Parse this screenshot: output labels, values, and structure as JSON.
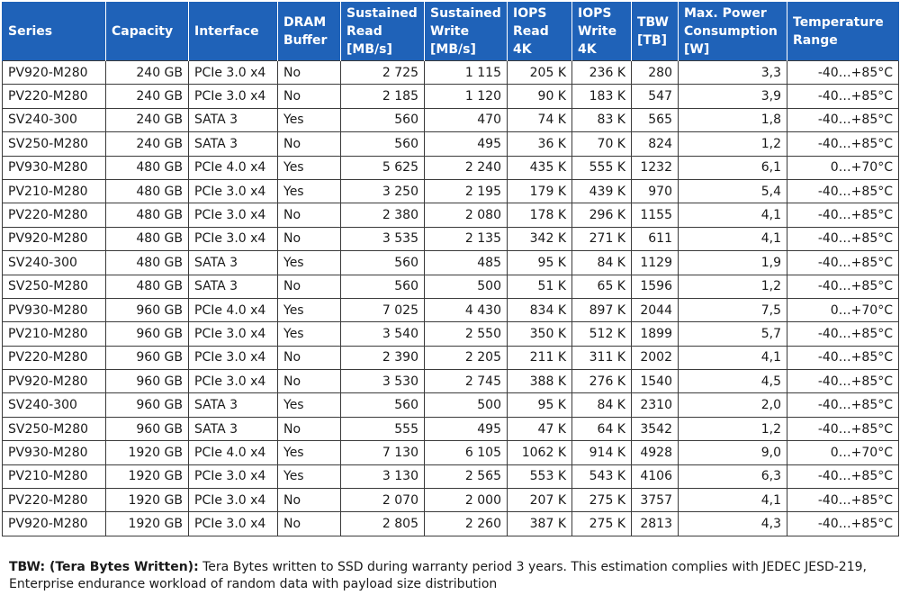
{
  "headers": [
    "Series",
    "Capacity",
    "Interface",
    "DRAM Buffer",
    "Sustained Read [MB/s]",
    "Sustained Write [MB/s]",
    "IOPS Read 4K",
    "IOPS Write 4K",
    "TBW [TB]",
    "Max. Power Consumption [W]",
    "Temperature Range"
  ],
  "rows": [
    [
      "PV920-M280",
      "240 GB",
      "PCIe 3.0 x4",
      "No",
      "2 725",
      "1 115",
      "205 K",
      "236 K",
      "280",
      "3,3",
      "-40…+85°C"
    ],
    [
      "PV220-M280",
      "240 GB",
      "PCIe 3.0 x4",
      "No",
      "2 185",
      "1 120",
      "90 K",
      "183 K",
      "547",
      "3,9",
      "-40…+85°C"
    ],
    [
      "SV240-300",
      "240 GB",
      "SATA 3",
      "Yes",
      "560",
      "470",
      "74 K",
      "83 K",
      "565",
      "1,8",
      "-40…+85°C"
    ],
    [
      "SV250-M280",
      "240 GB",
      "SATA 3",
      "No",
      "560",
      "495",
      "36 K",
      "70 K",
      "824",
      "1,2",
      "-40…+85°C"
    ],
    [
      "PV930-M280",
      "480 GB",
      "PCIe 4.0 x4",
      "Yes",
      "5 625",
      "2 240",
      "435 K",
      "555 K",
      "1232",
      "6,1",
      "0…+70°C"
    ],
    [
      "PV210-M280",
      "480 GB",
      "PCIe 3.0 x4",
      "Yes",
      "3 250",
      "2 195",
      "179 K",
      "439 K",
      "970",
      "5,4",
      "-40…+85°C"
    ],
    [
      "PV220-M280",
      "480 GB",
      "PCIe 3.0 x4",
      "No",
      "2 380",
      "2 080",
      "178 K",
      "296 K",
      "1155",
      "4,1",
      "-40…+85°C"
    ],
    [
      "PV920-M280",
      "480 GB",
      "PCIe 3.0 x4",
      "No",
      "3 535",
      "2 135",
      "342 K",
      "271 K",
      "611",
      "4,1",
      "-40…+85°C"
    ],
    [
      "SV240-300",
      "480 GB",
      "SATA 3",
      "Yes",
      "560",
      "485",
      "95 K",
      "84 K",
      "1129",
      "1,9",
      "-40…+85°C"
    ],
    [
      "SV250-M280",
      "480 GB",
      "SATA 3",
      "No",
      "560",
      "500",
      "51 K",
      "65 K",
      "1596",
      "1,2",
      "-40…+85°C"
    ],
    [
      "PV930-M280",
      "960 GB",
      "PCIe 4.0 x4",
      "Yes",
      "7 025",
      "4 430",
      "834 K",
      "897 K",
      "2044",
      "7,5",
      "0…+70°C"
    ],
    [
      "PV210-M280",
      "960 GB",
      "PCIe 3.0 x4",
      "Yes",
      "3 540",
      "2 550",
      "350 K",
      "512 K",
      "1899",
      "5,7",
      "-40…+85°C"
    ],
    [
      "PV220-M280",
      "960 GB",
      "PCIe 3.0 x4",
      "No",
      "2 390",
      "2 205",
      "211 K",
      "311 K",
      "2002",
      "4,1",
      "-40…+85°C"
    ],
    [
      "PV920-M280",
      "960 GB",
      "PCIe 3.0 x4",
      "No",
      "3 530",
      "2 745",
      "388 K",
      "276 K",
      "1540",
      "4,5",
      "-40…+85°C"
    ],
    [
      "SV240-300",
      "960 GB",
      "SATA 3",
      "Yes",
      "560",
      "500",
      "95 K",
      "84 K",
      "2310",
      "2,0",
      "-40…+85°C"
    ],
    [
      "SV250-M280",
      "960 GB",
      "SATA 3",
      "No",
      "555",
      "495",
      "47 K",
      "64 K",
      "3542",
      "1,2",
      "-40…+85°C"
    ],
    [
      "PV930-M280",
      "1920 GB",
      "PCIe 4.0 x4",
      "Yes",
      "7 130",
      "6 105",
      "1062 K",
      "914 K",
      "4928",
      "9,0",
      "0…+70°C"
    ],
    [
      "PV210-M280",
      "1920 GB",
      "PCIe 3.0 x4",
      "Yes",
      "3 130",
      "2 565",
      "553 K",
      "543 K",
      "4106",
      "6,3",
      "-40…+85°C"
    ],
    [
      "PV220-M280",
      "1920 GB",
      "PCIe 3.0 x4",
      "No",
      "2 070",
      "2 000",
      "207 K",
      "275 K",
      "3757",
      "4,1",
      "-40…+85°C"
    ],
    [
      "PV920-M280",
      "1920 GB",
      "PCIe 3.0 x4",
      "No",
      "2 805",
      "2 260",
      "387 K",
      "275 K",
      "2813",
      "4,3",
      "-40…+85°C"
    ]
  ],
  "footnote": {
    "term": "TBW: (Tera Bytes Written):",
    "text": " Tera Bytes written to SSD during warranty period 3 years. This estimation complies with JEDEC JESD-219, Enterprise endurance workload of random data with payload size distribution"
  },
  "colors": {
    "header_bg": "#1f62b8",
    "header_text": "#ffffff",
    "grid": "#3b3b3b"
  }
}
